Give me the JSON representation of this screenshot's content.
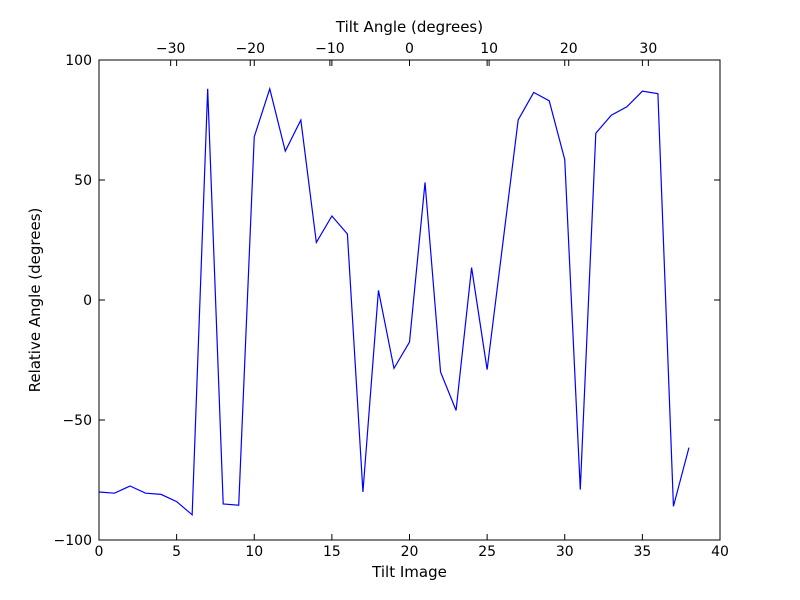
{
  "chart_data": {
    "type": "line",
    "title": "",
    "xlabel": "Tilt Image",
    "ylabel": "Relative Angle (degrees)",
    "top_xlabel": "Tilt Angle (degrees)",
    "xlim": [
      0,
      40
    ],
    "ylim": [
      -100,
      100
    ],
    "xticks": [
      0,
      5,
      10,
      15,
      20,
      25,
      30,
      35,
      40
    ],
    "yticks": [
      -100,
      -50,
      0,
      50,
      100
    ],
    "top_xlim": [
      -39,
      39
    ],
    "top_xticks": [
      -30,
      -20,
      -10,
      0,
      10,
      20,
      30
    ],
    "grid": false,
    "line_color": "#0000ff",
    "series": [
      {
        "x": [
          0,
          1,
          2,
          3,
          4,
          5,
          6,
          7,
          8,
          9,
          10,
          11,
          12,
          13,
          14,
          15,
          16,
          17,
          18,
          19,
          20,
          21,
          22,
          23,
          24,
          25,
          26,
          27,
          28,
          29,
          30,
          31,
          32,
          33,
          34,
          35,
          36,
          37,
          38
        ],
        "values": [
          -80,
          -80.5,
          -77.5,
          -80.5,
          -81,
          -84,
          -89.5,
          88,
          -85,
          -85.5,
          68,
          88,
          62,
          75,
          24,
          35,
          27.5,
          -80,
          4,
          -28.5,
          -17.5,
          49,
          -30,
          -46,
          13.5,
          -29,
          23,
          75,
          86.5,
          83,
          58.5,
          -79,
          69.5,
          77,
          80.5,
          87,
          86,
          -86,
          -61.5
        ]
      }
    ]
  }
}
